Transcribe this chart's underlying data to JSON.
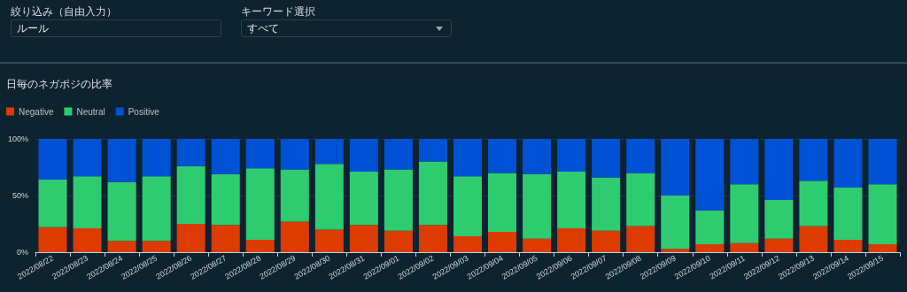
{
  "chart_data": {
    "type": "bar",
    "stacked": true,
    "title": "日毎のネガポジの比率",
    "annotations": [
      "絞り込み（自由入力）",
      "ルール",
      "キーワード選択",
      "すべて"
    ],
    "categories": [
      "2022/08/22",
      "2022/08/23",
      "2022/08/24",
      "2022/08/25",
      "2022/08/26",
      "2022/08/27",
      "2022/08/28",
      "2022/08/29",
      "2022/08/30",
      "2022/08/31",
      "2022/09/01",
      "2022/09/02",
      "2022/09/03",
      "2022/09/04",
      "2022/09/05",
      "2022/09/06",
      "2022/09/07",
      "2022/09/08",
      "2022/09/09",
      "2022/09/10",
      "2022/09/11",
      "2022/09/12",
      "2022/09/13",
      "2022/09/14",
      "2022/09/15"
    ],
    "series": [
      {
        "name": "Negative",
        "color": "#dc3c00",
        "values": [
          22,
          21,
          10,
          10,
          25,
          24,
          11,
          27,
          20,
          24,
          19,
          24,
          14,
          18,
          12,
          21,
          19,
          23,
          3,
          7,
          8,
          12,
          23,
          11,
          7
        ]
      },
      {
        "name": "Neutral",
        "color": "#2ecc71",
        "values": [
          42,
          46,
          52,
          57,
          51,
          45,
          63,
          46,
          58,
          47,
          54,
          56,
          53,
          52,
          57,
          50,
          47,
          47,
          47,
          30,
          52,
          34,
          40,
          46,
          53
        ]
      },
      {
        "name": "Positive",
        "color": "#0052d4",
        "values": [
          36,
          33,
          38,
          33,
          24,
          31,
          26,
          27,
          22,
          29,
          27,
          20,
          33,
          30,
          31,
          29,
          34,
          30,
          50,
          63,
          40,
          54,
          37,
          43,
          40
        ]
      }
    ],
    "ylim": [
      0,
      100
    ],
    "yticks": [
      {
        "value": 0,
        "label": "0%"
      },
      {
        "value": 50,
        "label": "50%"
      },
      {
        "value": 100,
        "label": "100%"
      }
    ],
    "grid": "y",
    "legend": "top left"
  }
}
